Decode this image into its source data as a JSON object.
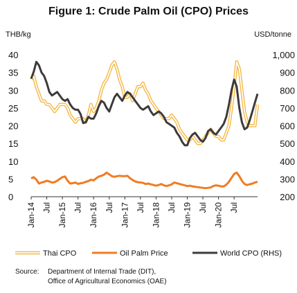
{
  "chart_data": {
    "type": "line",
    "title": "Figure 1: Crude Palm Oil (CPO) Prices",
    "ylabel_left": "THB/kg",
    "ylabel_right": "USD/tonne",
    "ylim_left": [
      0,
      40
    ],
    "ylim_right": [
      200,
      1000
    ],
    "yticks_left": [
      "0",
      "5",
      "10",
      "15",
      "20",
      "25",
      "30",
      "35",
      "40"
    ],
    "yticks_right": [
      "200",
      "300",
      "400",
      "500",
      "600",
      "700",
      "800",
      "900",
      "1,000"
    ],
    "x_tick_labels": [
      "Jan-14",
      "Jul",
      "Jan-15",
      "Jul",
      "Jan-16",
      "Jul",
      "Jan-17",
      "Jul",
      "Jan-18",
      "Jul",
      "Jan-19",
      "Jul",
      "Jan-20",
      "Jul"
    ],
    "x_start": "Jan-14",
    "x_end": "Oct-20",
    "grid": false,
    "legend_position": "bottom",
    "series": [
      {
        "name": "Thai CPO",
        "axis": "left",
        "color": "#F4B63F",
        "style": "double",
        "values": [
          33,
          34,
          31,
          29,
          27,
          27,
          26,
          26,
          25,
          24,
          25,
          26,
          26,
          26,
          25,
          23,
          22,
          21,
          22,
          22,
          22,
          21,
          23,
          26,
          24,
          25,
          27,
          30,
          32,
          33,
          35,
          37,
          38,
          36,
          33,
          31,
          28,
          28,
          29,
          27,
          29,
          31,
          31,
          32,
          30,
          29,
          27,
          26,
          25,
          24,
          23,
          22,
          22,
          22,
          23,
          22,
          21,
          19,
          18,
          17,
          16,
          16,
          17,
          16,
          15,
          15,
          16,
          17,
          18,
          19,
          18,
          17,
          17,
          16,
          16,
          18,
          20,
          25,
          31,
          38,
          36,
          30,
          24,
          21,
          20,
          20,
          20,
          26
        ]
      },
      {
        "name": "Oil Palm Price",
        "axis": "left",
        "color": "#F07B22",
        "style": "solid",
        "values": [
          5.2,
          5.5,
          4.8,
          3.7,
          4.0,
          4.2,
          4.5,
          4.3,
          4.0,
          4.1,
          4.5,
          5.0,
          5.5,
          5.7,
          4.5,
          3.7,
          3.8,
          4.0,
          3.6,
          3.8,
          3.9,
          4.2,
          4.4,
          4.8,
          4.6,
          5.2,
          5.7,
          5.9,
          6.2,
          6.8,
          6.3,
          5.8,
          5.6,
          5.8,
          5.9,
          5.8,
          5.8,
          5.9,
          5.2,
          4.7,
          4.3,
          4.1,
          4.0,
          3.9,
          3.6,
          3.7,
          3.5,
          3.3,
          3.1,
          3.3,
          3.6,
          3.2,
          3.0,
          3.2,
          3.5,
          4.0,
          3.8,
          3.6,
          3.4,
          3.2,
          3.0,
          3.1,
          2.9,
          2.8,
          2.7,
          2.6,
          2.5,
          2.4,
          2.5,
          2.6,
          3.0,
          3.2,
          3.1,
          2.9,
          2.9,
          3.4,
          4.2,
          5.3,
          6.4,
          6.8,
          5.8,
          4.5,
          3.6,
          3.3,
          3.5,
          3.7,
          4.0,
          4.2
        ]
      },
      {
        "name": "World CPO (RHS)",
        "axis": "right",
        "color": "#3D3A3A",
        "style": "solid",
        "values": [
          865,
          905,
          960,
          940,
          900,
          880,
          840,
          790,
          770,
          780,
          790,
          770,
          750,
          740,
          750,
          720,
          700,
          690,
          690,
          665,
          615,
          620,
          650,
          640,
          640,
          670,
          710,
          740,
          730,
          700,
          680,
          720,
          760,
          780,
          760,
          740,
          770,
          790,
          780,
          760,
          740,
          720,
          700,
          690,
          700,
          710,
          680,
          660,
          670,
          680,
          670,
          650,
          620,
          610,
          600,
          590,
          560,
          540,
          510,
          490,
          490,
          530,
          550,
          560,
          540,
          520,
          510,
          530,
          570,
          580,
          560,
          550,
          570,
          590,
          610,
          650,
          720,
          800,
          860,
          820,
          700,
          620,
          580,
          590,
          630,
          680,
          730,
          780
        ]
      }
    ]
  },
  "source": {
    "label": "Source:",
    "line1": "Department of Internal Trade (DIT),",
    "line2": "Office of Agricultural Economics (OAE)"
  }
}
